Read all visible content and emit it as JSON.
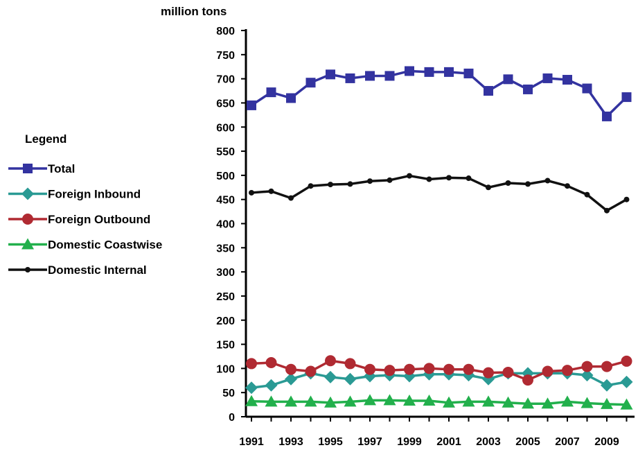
{
  "chart_data": {
    "type": "line",
    "ylabel": "million tons",
    "ylim": [
      0,
      800
    ],
    "ytick_step": 50,
    "x": [
      1991,
      1992,
      1993,
      1994,
      1995,
      1996,
      1997,
      1998,
      1999,
      2000,
      2001,
      2002,
      2003,
      2004,
      2005,
      2006,
      2007,
      2008,
      2009,
      2010
    ],
    "x_tick_labels": [
      "1991",
      "1993",
      "1995",
      "1997",
      "1999",
      "2001",
      "2003",
      "2005",
      "2007",
      "2009"
    ],
    "legend_title": "Legend",
    "legend_position": "left",
    "grid": false,
    "series": [
      {
        "name": "Total",
        "color": "#3333a0",
        "marker": "square",
        "values": [
          645,
          672,
          660,
          692,
          709,
          701,
          706,
          706,
          716,
          714,
          714,
          711,
          675,
          699,
          678,
          701,
          698,
          680,
          622,
          662
        ]
      },
      {
        "name": "Foreign Inbound",
        "color": "#2a9a94",
        "marker": "diamond",
        "values": [
          60,
          65,
          78,
          90,
          82,
          78,
          84,
          86,
          84,
          88,
          88,
          86,
          78,
          90,
          90,
          90,
          90,
          86,
          65,
          72
        ]
      },
      {
        "name": "Foreign Outbound",
        "color": "#b02a32",
        "marker": "circle",
        "values": [
          110,
          112,
          98,
          94,
          116,
          110,
          98,
          96,
          98,
          100,
          98,
          98,
          91,
          92,
          76,
          94,
          96,
          104,
          104,
          115
        ]
      },
      {
        "name": "Domestic Coastwise",
        "color": "#22b04c",
        "marker": "triangle",
        "values": [
          32,
          31,
          31,
          31,
          29,
          31,
          34,
          34,
          33,
          33,
          29,
          31,
          31,
          29,
          27,
          27,
          31,
          28,
          26,
          25
        ]
      },
      {
        "name": "Domestic Internal",
        "color": "#111111",
        "marker": "dot",
        "values": [
          464,
          467,
          453,
          478,
          481,
          482,
          488,
          490,
          499,
          492,
          495,
          494,
          475,
          484,
          482,
          489,
          478,
          460,
          427,
          450
        ]
      }
    ]
  }
}
